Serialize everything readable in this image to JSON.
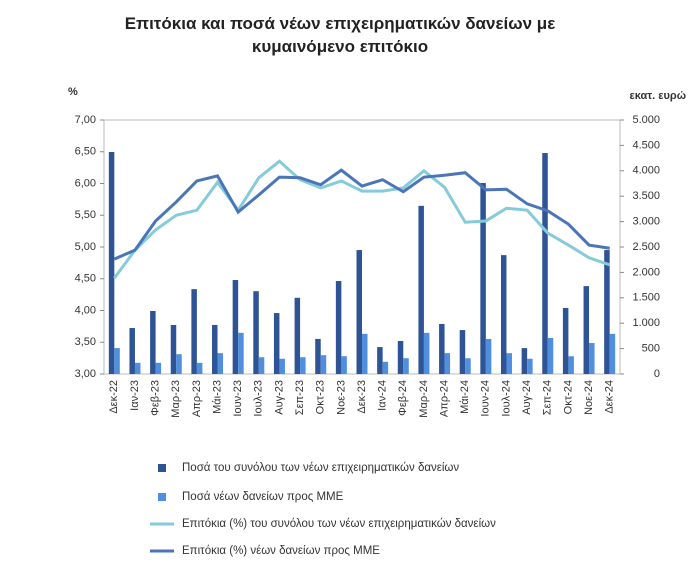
{
  "chart_data": {
    "type": "combo",
    "title": "Επιτόκια και ποσά νέων επιχειρηματικών δανείων με κυμαινόμενο επιτόκιο",
    "y_label": "%",
    "y2_label": "εκατ. ευρώ",
    "categories": [
      "Δεκ-22",
      "Ιαν-23",
      "Φεβ-23",
      "Μαρ-23",
      "Απρ-23",
      "Μάι-23",
      "Ιουν-23",
      "Ιουλ-23",
      "Αυγ-23",
      "Σεπ-23",
      "Οκτ-23",
      "Νοε-23",
      "Δεκ-23",
      "Ιαν-24",
      "Φεβ-24",
      "Μαρ-24",
      "Απρ-24",
      "Μάι-24",
      "Ιουν-24",
      "Ιουλ-24",
      "Αυγ-24",
      "Σεπ-24",
      "Οκτ-24",
      "Νοε-24",
      "Δεκ-24"
    ],
    "ylim": [
      3,
      7
    ],
    "yticks": [
      {
        "value": 3,
        "label": "3,00"
      },
      {
        "value": 3.5,
        "label": "3,50"
      },
      {
        "value": 4,
        "label": "4,00"
      },
      {
        "value": 4.5,
        "label": "4,50"
      },
      {
        "value": 5,
        "label": "5,00"
      },
      {
        "value": 5.5,
        "label": "5,50"
      },
      {
        "value": 6,
        "label": "6,00"
      },
      {
        "value": 6.5,
        "label": "6,50"
      },
      {
        "value": 7,
        "label": "7,00"
      }
    ],
    "y2lim": [
      0,
      5000
    ],
    "y2ticks": [
      0,
      {
        "value": 500,
        "label": "500"
      },
      {
        "value": 1000,
        "label": "1.000"
      },
      {
        "value": 1500,
        "label": "1.500"
      },
      {
        "value": 2000,
        "label": "2.000"
      },
      {
        "value": 2500,
        "label": "2.500"
      },
      {
        "value": 3000,
        "label": "3.000"
      },
      {
        "value": 3500,
        "label": "3.500"
      },
      {
        "value": 4000,
        "label": "4.000"
      },
      {
        "value": 4500,
        "label": "4.500"
      },
      {
        "value": 5000,
        "label": "5.000"
      }
    ],
    "series": [
      {
        "name": "Ποσά του συνόλου των νέων επιχειρηματικών δανείων",
        "kind": "bar",
        "axis": "y2",
        "color": "#2f5496",
        "values": [
          4370,
          905,
          1240,
          965,
          1670,
          965,
          1850,
          1630,
          1200,
          1500,
          690,
          1830,
          2440,
          530,
          650,
          3310,
          985,
          865,
          3760,
          2340,
          510,
          4350,
          1300,
          1730,
          2440
        ]
      },
      {
        "name": "Ποσά νέων δανείων προς ΜΜΕ",
        "kind": "bar",
        "axis": "y2",
        "color": "#4f8fdd",
        "values": [
          510,
          220,
          220,
          390,
          220,
          410,
          810,
          330,
          300,
          330,
          370,
          350,
          790,
          240,
          310,
          810,
          410,
          310,
          690,
          410,
          300,
          710,
          350,
          610,
          790
        ]
      },
      {
        "name": "Επιτόκια (%) του συνόλου των νέων επιχειρηματικών δανείων",
        "kind": "line",
        "color": "#86cbd9",
        "values": [
          4.51,
          4.95,
          5.27,
          5.5,
          5.58,
          6.02,
          5.58,
          6.09,
          6.35,
          6.06,
          5.93,
          6.04,
          5.88,
          5.88,
          5.93,
          6.2,
          5.94,
          5.39,
          5.41,
          5.61,
          5.58,
          5.22,
          5.03,
          4.83,
          4.72
        ]
      },
      {
        "name": "Επιτόκια (%) νέων δανείων προς ΜΜΕ",
        "kind": "line",
        "color": "#4a76b9",
        "values": [
          4.81,
          4.95,
          5.41,
          5.71,
          6.04,
          6.12,
          5.55,
          5.82,
          6.1,
          6.09,
          5.98,
          6.21,
          5.96,
          6.06,
          5.87,
          6.1,
          6.13,
          6.17,
          5.9,
          5.91,
          5.68,
          5.57,
          5.36,
          5.03,
          4.98
        ]
      }
    ]
  }
}
